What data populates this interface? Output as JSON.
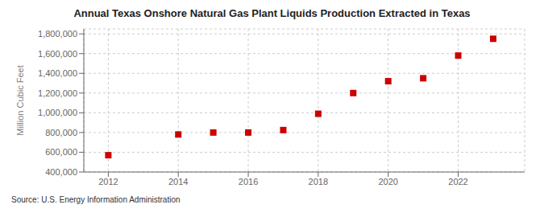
{
  "chart_data": {
    "type": "scatter",
    "title": "Annual Texas Onshore Natural Gas Plant Liquids Production Extracted in Texas",
    "ylabel": "Million Cubic Feet",
    "annotations": [
      "Source: U.S. Energy Information Administration"
    ],
    "x": [
      2012,
      2014,
      2015,
      2016,
      2017,
      2018,
      2019,
      2020,
      2021,
      2022,
      2023
    ],
    "values": [
      570000,
      780000,
      800000,
      800000,
      825000,
      990000,
      1200000,
      1320000,
      1350000,
      1580000,
      1750000
    ],
    "color": "#cc0000",
    "marker": "square",
    "xlim": [
      2011.3,
      2023.9
    ],
    "ylim": [
      400000,
      1850000
    ],
    "xticks": [
      2012,
      2014,
      2016,
      2018,
      2020,
      2022
    ],
    "yticks": [
      {
        "value": 400000,
        "label": "400,000"
      },
      {
        "value": 600000,
        "label": "600,000"
      },
      {
        "value": 800000,
        "label": "800,000"
      },
      {
        "value": 1000000,
        "label": "1,000,000"
      },
      {
        "value": 1200000,
        "label": "1,200,000"
      },
      {
        "value": 1400000,
        "label": "1,400,000"
      },
      {
        "value": 1600000,
        "label": "1,600,000"
      },
      {
        "value": 1800000,
        "label": "1,800,000"
      }
    ],
    "grid": true
  }
}
